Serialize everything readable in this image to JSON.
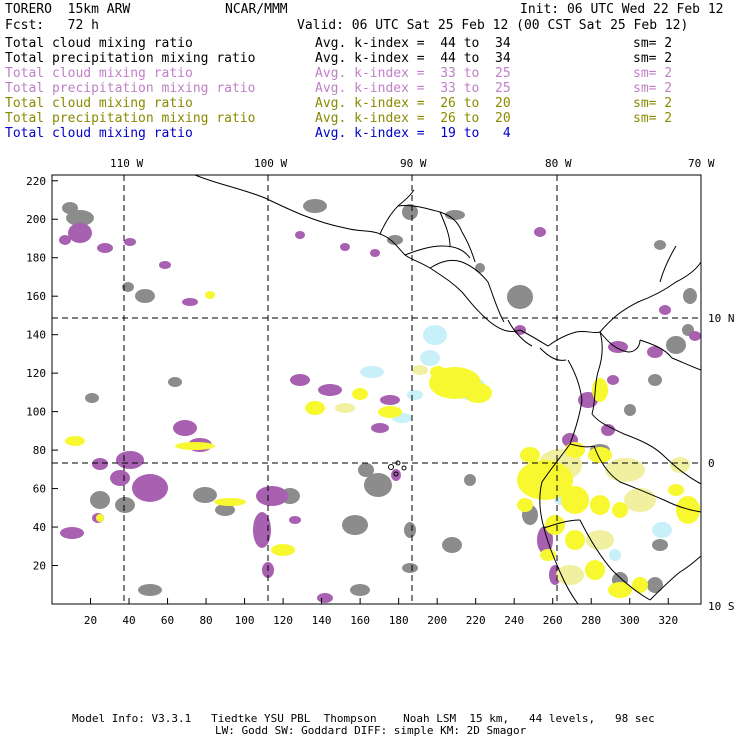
{
  "header": {
    "model": "TORERO  15km ARW",
    "org": "NCAR/MMM",
    "init": "Init: 06 UTC Wed 22 Feb 12",
    "fcst": "Fcst:   72 h",
    "valid": "Valid: 06 UTC Sat 25 Feb 12 (00 CST Sat 25 Feb 12)"
  },
  "legend": [
    {
      "field": "Total cloud mixing ratio",
      "index": "Avg. k-index =  44 to  34",
      "sm": "sm= 2",
      "color": "#000000"
    },
    {
      "field": "Total precipitation mixing ratio",
      "index": "Avg. k-index =  44 to  34",
      "sm": "sm= 2",
      "color": "#000000"
    },
    {
      "field": "Total cloud mixing ratio",
      "index": "Avg. k-index =  33 to  25",
      "sm": "sm= 2",
      "color": "#c080c8"
    },
    {
      "field": "Total precipitation mixing ratio",
      "index": "Avg. k-index =  33 to  25",
      "sm": "sm= 2",
      "color": "#c080c8"
    },
    {
      "field": "Total cloud mixing ratio",
      "index": "Avg. k-index =  26 to  20",
      "sm": "sm= 2",
      "color": "#8a8a00"
    },
    {
      "field": "Total precipitation mixing ratio",
      "index": "Avg. k-index =  26 to  20",
      "sm": "sm= 2",
      "color": "#8a8a00"
    },
    {
      "field": "Total cloud mixing ratio",
      "index": "Avg. k-index =  19 to   4",
      "sm": "",
      "color": "#0000c8"
    }
  ],
  "map": {
    "lon_labels": [
      "110 W",
      "100 W",
      "90 W",
      "80 W",
      "70 W"
    ],
    "lat_labels": [
      "10 N",
      "0",
      "10 S"
    ],
    "x_ticks": [
      "20",
      "40",
      "60",
      "80",
      "100",
      "120",
      "140",
      "160",
      "180",
      "200",
      "220",
      "240",
      "260",
      "280",
      "300",
      "320"
    ],
    "y_ticks": [
      "20",
      "40",
      "60",
      "80",
      "100",
      "120",
      "140",
      "160",
      "180",
      "200",
      "220"
    ],
    "colors": {
      "gray": "#8c8c8c",
      "purple": "#a860b0",
      "yellow": "#f8f830",
      "pale_yellow": "#f0f0a0",
      "cyan": "#c8f0f8"
    }
  },
  "footer": {
    "line1": "Model Info: V3.3.1   Tiedtke YSU PBL  Thompson    Noah LSM  15 km,   44 levels,   98 sec",
    "line2": "LW: Godd SW: Goddard DIFF: simple KM: 2D Smagor"
  }
}
